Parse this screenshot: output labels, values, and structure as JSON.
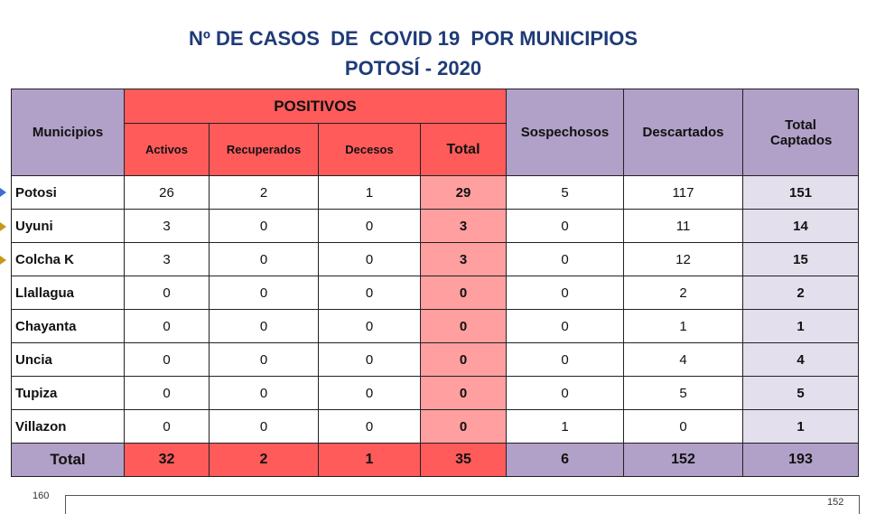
{
  "title": [
    "Nº DE CASOS  DE  COVID 19  POR MUNICIPIOS",
    "POTOSÍ - 2020"
  ],
  "table": {
    "header": {
      "municipios": "Municipios",
      "positivos": "POSITIVOS",
      "sub": [
        "Activos",
        "Recuperados",
        "Decesos",
        "Total"
      ],
      "sospechosos": "Sospechosos",
      "descartados": "Descartados",
      "total_captados": "Total Captados"
    },
    "rows": [
      [
        "Potosi",
        26,
        2,
        1,
        29,
        5,
        117,
        151
      ],
      [
        "Uyuni",
        3,
        0,
        0,
        3,
        0,
        11,
        14
      ],
      [
        "Colcha K",
        3,
        0,
        0,
        3,
        0,
        12,
        15
      ],
      [
        "Llallagua",
        0,
        0,
        0,
        0,
        0,
        2,
        2
      ],
      [
        "Chayanta",
        0,
        0,
        0,
        0,
        0,
        1,
        1
      ],
      [
        "Uncia",
        0,
        0,
        0,
        0,
        0,
        4,
        4
      ],
      [
        "Tupiza",
        0,
        0,
        0,
        0,
        0,
        5,
        5
      ],
      [
        "Villazon",
        0,
        0,
        0,
        0,
        1,
        0,
        1
      ]
    ],
    "total": [
      "Total",
      32,
      2,
      1,
      35,
      6,
      152,
      193
    ]
  },
  "chart_fragment": {
    "tick": "160",
    "label": "152"
  }
}
